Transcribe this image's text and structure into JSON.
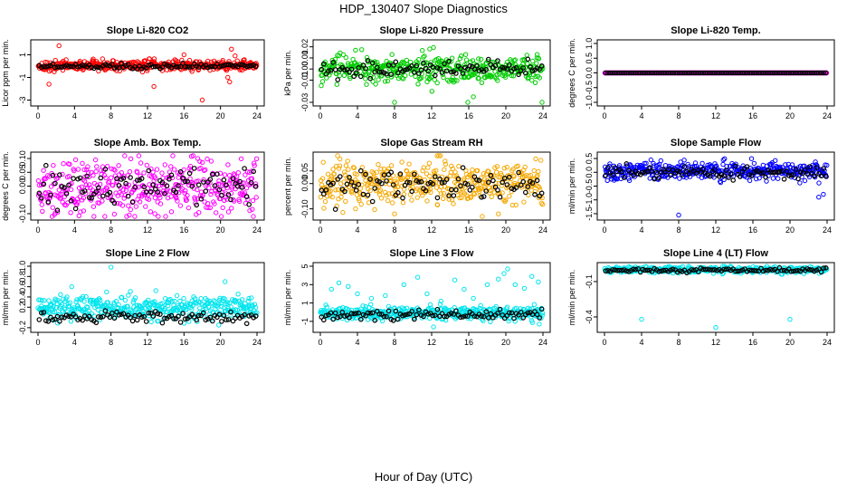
{
  "figure": {
    "title": "HDP_130407  Slope Diagnostics",
    "xlabel": "Hour of Day (UTC)"
  },
  "chart_data": [
    {
      "type": "scatter",
      "title": "Slope Li-820 CO2",
      "ylabel": "Licor ppm per min.",
      "xlim": [
        0,
        24
      ],
      "ylim": [
        -3.2,
        2.0
      ],
      "xticks": [
        "0",
        "4",
        "8",
        "12",
        "16",
        "20",
        "24"
      ],
      "xtick_values": [
        0,
        4,
        8,
        12,
        16,
        20,
        24
      ],
      "yticks": [
        "-3",
        "-1",
        "1"
      ],
      "ytick_values": [
        -3,
        -1,
        1
      ],
      "all_color": "#ff0000",
      "hourly_color": "#000000",
      "all_series": {
        "center": 0.05,
        "spread": 0.22
      },
      "hourly_series": {
        "center": 0.0,
        "spread": 0.12
      },
      "outliers": [
        [
          2.3,
          1.8
        ],
        [
          1.2,
          -1.6
        ],
        [
          12.7,
          -1.8
        ],
        [
          18.0,
          -3.0
        ],
        [
          21.2,
          1.5
        ],
        [
          21.0,
          -1.4
        ],
        [
          20.8,
          -1.0
        ],
        [
          21.6,
          0.9
        ],
        [
          16.0,
          1.0
        ]
      ]
    },
    {
      "type": "scatter",
      "title": "Slope Li-820 Pressure",
      "ylabel": "kPa per min.",
      "xlim": [
        0,
        24
      ],
      "ylim": [
        -0.03,
        0.023
      ],
      "xticks": [
        "0",
        "4",
        "8",
        "12",
        "16",
        "20",
        "24"
      ],
      "xtick_values": [
        0,
        4,
        8,
        12,
        16,
        20,
        24
      ],
      "yticks": [
        "-0.03",
        "-0.01",
        "0.00",
        "0.01",
        "0.02"
      ],
      "ytick_values": [
        -0.03,
        -0.01,
        0.0,
        0.01,
        0.02
      ],
      "all_color": "#00cc00",
      "hourly_color": "#000000",
      "all_series": {
        "center": 0.0,
        "spread": 0.006
      },
      "hourly_series": {
        "center": 0.0,
        "spread": 0.004
      },
      "outliers": [
        [
          8.0,
          -0.03
        ],
        [
          15.9,
          -0.03
        ],
        [
          23.9,
          -0.03
        ],
        [
          0.1,
          -0.015
        ],
        [
          16.5,
          -0.025
        ],
        [
          11.8,
          0.018
        ],
        [
          3.8,
          0.017
        ]
      ]
    },
    {
      "type": "scatter",
      "title": "Slope Li-820 Temp.",
      "ylabel": "degrees C per min.",
      "xlim": [
        0,
        24
      ],
      "ylim": [
        -1.0,
        1.0
      ],
      "xticks": [
        "0",
        "4",
        "8",
        "12",
        "16",
        "20",
        "24"
      ],
      "xtick_values": [
        0,
        4,
        8,
        12,
        16,
        20,
        24
      ],
      "yticks": [
        "-1.0",
        "-0.5",
        "0.0",
        "0.5",
        "1.0"
      ],
      "ytick_values": [
        -1.0,
        -0.5,
        0.0,
        0.5,
        1.0
      ],
      "all_color": "#ff00ff",
      "hourly_color": "#000000",
      "all_series": {
        "center": 0.0,
        "spread": 0.0
      },
      "hourly_series": {
        "center": 0.0,
        "spread": 0.0
      },
      "outliers": []
    },
    {
      "type": "scatter",
      "title": "Slope Amb. Box Temp.",
      "ylabel": "degrees C per min.",
      "xlim": [
        0,
        24
      ],
      "ylim": [
        -0.11,
        0.11
      ],
      "xticks": [
        "0",
        "4",
        "8",
        "12",
        "16",
        "20",
        "24"
      ],
      "xtick_values": [
        0,
        4,
        8,
        12,
        16,
        20,
        24
      ],
      "yticks": [
        "-0.10",
        "0.00",
        "0.05",
        "0.10"
      ],
      "ytick_values": [
        -0.1,
        0.0,
        0.05,
        0.1
      ],
      "all_color": "#ff00ff",
      "hourly_color": "#000000",
      "all_series": {
        "center": 0.0,
        "spread": 0.05
      },
      "hourly_series": {
        "center": 0.0,
        "spread": 0.035
      },
      "outliers": [
        [
          12.8,
          -0.1
        ],
        [
          21.2,
          -0.08
        ],
        [
          17.5,
          0.1
        ],
        [
          5.0,
          -0.09
        ]
      ]
    },
    {
      "type": "scatter",
      "title": "Slope Gas Stream RH",
      "ylabel": "percent per min.",
      "xlim": [
        0,
        24
      ],
      "ylim": [
        -0.13,
        0.11
      ],
      "xticks": [
        "0",
        "4",
        "8",
        "12",
        "16",
        "20",
        "24"
      ],
      "xtick_values": [
        0,
        4,
        8,
        12,
        16,
        20,
        24
      ],
      "yticks": [
        "-0.10",
        "0.00",
        "0.05"
      ],
      "ytick_values": [
        -0.1,
        0.0,
        0.05
      ],
      "all_color": "#f5a800",
      "hourly_color": "#000000",
      "all_series": {
        "center": 0.0,
        "spread": 0.045
      },
      "hourly_series": {
        "center": 0.0,
        "spread": 0.03
      },
      "outliers": [
        [
          12.6,
          0.11
        ],
        [
          19.2,
          -0.12
        ],
        [
          8.0,
          -0.12
        ],
        [
          3.8,
          -0.1
        ]
      ]
    },
    {
      "type": "scatter",
      "title": "Slope Sample Flow",
      "ylabel": "ml/min per min.",
      "xlim": [
        0,
        24
      ],
      "ylim": [
        -1.6,
        0.6
      ],
      "xticks": [
        "0",
        "4",
        "8",
        "12",
        "16",
        "20",
        "24"
      ],
      "xtick_values": [
        0,
        4,
        8,
        12,
        16,
        20,
        24
      ],
      "yticks": [
        "-1.5",
        "-1.0",
        "-0.5",
        "0.0",
        "0.5"
      ],
      "ytick_values": [
        -1.5,
        -1.0,
        -0.5,
        0.0,
        0.5
      ],
      "all_color": "#0000ff",
      "hourly_color": "#000000",
      "all_series": {
        "center": 0.05,
        "spread": 0.15
      },
      "hourly_series": {
        "center": 0.0,
        "spread": 0.12
      },
      "outliers": [
        [
          8.0,
          -1.55
        ],
        [
          23.6,
          -0.8
        ],
        [
          23.1,
          -0.9
        ],
        [
          5.0,
          0.45
        ]
      ]
    },
    {
      "type": "scatter",
      "title": "Slope Line 2 Flow",
      "ylabel": "ml/min per min.",
      "xlim": [
        0,
        24
      ],
      "ylim": [
        -0.22,
        1.0
      ],
      "xticks": [
        "0",
        "4",
        "8",
        "12",
        "16",
        "20",
        "24"
      ],
      "xtick_values": [
        0,
        4,
        8,
        12,
        16,
        20,
        24
      ],
      "yticks": [
        "-0.2",
        "0.2",
        "0.4",
        "0.6",
        "0.8",
        "1.0"
      ],
      "ytick_values": [
        -0.2,
        0.2,
        0.4,
        0.6,
        0.8,
        1.0
      ],
      "all_color": "#00e5ee",
      "hourly_color": "#000000",
      "all_series": {
        "center": 0.18,
        "spread": 0.12
      },
      "hourly_series": {
        "center": 0.0,
        "spread": 0.05
      },
      "outliers": [
        [
          8.0,
          0.98
        ],
        [
          20.5,
          0.7
        ],
        [
          3.7,
          0.6
        ],
        [
          19.8,
          -0.15
        ]
      ]
    },
    {
      "type": "scatter",
      "title": "Slope Line 3 Flow",
      "ylabel": "ml/min per min.",
      "xlim": [
        0,
        24
      ],
      "ylim": [
        -1.8,
        5.0
      ],
      "xticks": [
        "0",
        "4",
        "8",
        "12",
        "16",
        "20",
        "24"
      ],
      "xtick_values": [
        0,
        4,
        8,
        12,
        16,
        20,
        24
      ],
      "yticks": [
        "-1",
        "1",
        "3",
        "5"
      ],
      "ytick_values": [
        -1,
        1,
        3,
        5
      ],
      "all_color": "#00e5ee",
      "hourly_color": "#000000",
      "all_series": {
        "center": -0.1,
        "spread": 0.35
      },
      "hourly_series": {
        "center": -0.3,
        "spread": 0.3
      },
      "outliers": [
        [
          1.2,
          2.5
        ],
        [
          2.0,
          3.2
        ],
        [
          3.0,
          2.8
        ],
        [
          4.0,
          2.0
        ],
        [
          5.5,
          1.5
        ],
        [
          7.0,
          1.8
        ],
        [
          9.0,
          3.0
        ],
        [
          10.5,
          3.8
        ],
        [
          11.5,
          2.0
        ],
        [
          13.0,
          1.2
        ],
        [
          14.5,
          3.5
        ],
        [
          15.5,
          2.5
        ],
        [
          16.5,
          1.5
        ],
        [
          18.0,
          3.0
        ],
        [
          19.2,
          3.6
        ],
        [
          19.8,
          4.2
        ],
        [
          20.2,
          4.7
        ],
        [
          21.0,
          3.0
        ],
        [
          22.0,
          2.6
        ],
        [
          22.8,
          3.9
        ],
        [
          23.5,
          3.3
        ],
        [
          12.2,
          -1.6
        ],
        [
          23.6,
          -1.3
        ]
      ]
    },
    {
      "type": "scatter",
      "title": "Slope Line 4 (LT) Flow",
      "ylabel": "ml/min per min.",
      "xlim": [
        0,
        24
      ],
      "ylim": [
        -0.5,
        0.03
      ],
      "xticks": [
        "0",
        "4",
        "8",
        "12",
        "16",
        "20",
        "24"
      ],
      "xtick_values": [
        0,
        4,
        8,
        12,
        16,
        20,
        24
      ],
      "yticks": [
        "-0.4",
        "-0.1"
      ],
      "ytick_values": [
        -0.4,
        -0.1
      ],
      "all_color": "#00e5ee",
      "hourly_color": "#000000",
      "all_series": {
        "center": 0.0,
        "spread": 0.013
      },
      "hourly_series": {
        "center": -0.005,
        "spread": 0.01
      },
      "outliers": [
        [
          4.0,
          -0.42
        ],
        [
          12.0,
          -0.49
        ],
        [
          20.0,
          -0.42
        ]
      ]
    }
  ]
}
